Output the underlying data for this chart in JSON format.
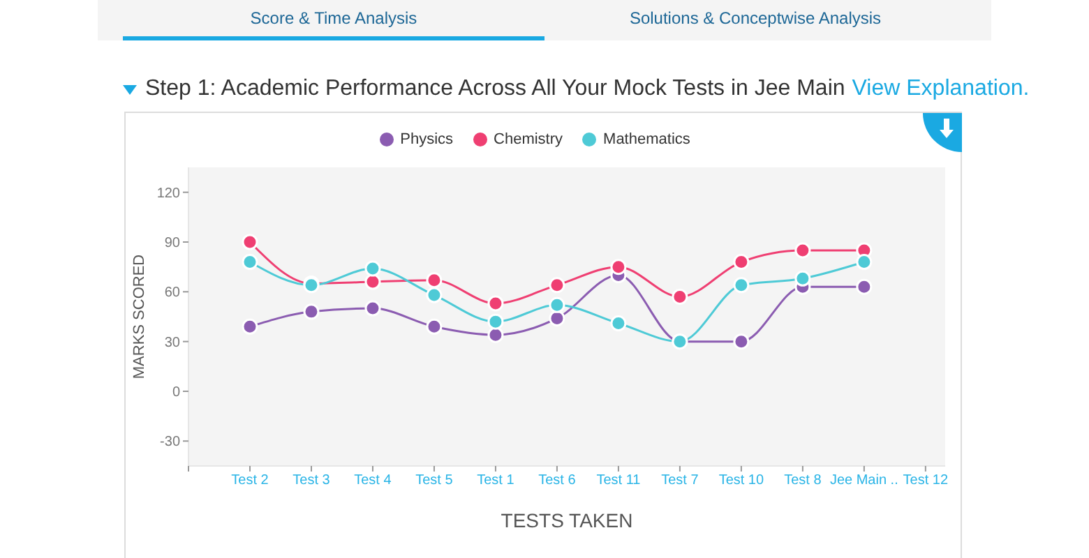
{
  "chart_data": {
    "type": "line",
    "title": "Step 1: Academic Performance Across All Your Mock Tests in Jee Main",
    "annotations": [
      "Score & Time Analysis",
      "Solutions & Conceptwise Analysis",
      "View Explanation."
    ],
    "xlabel": "TESTS TAKEN",
    "ylabel": "MARKS SCORED",
    "categories": [
      null,
      "Test 2",
      "Test 3",
      "Test 4",
      "Test 5",
      "Test 1",
      "Test 6",
      "Test 11",
      "Test 7",
      "Test 10",
      "Test 8",
      "Jee Main ..",
      "Test 12"
    ],
    "series": [
      {
        "name": "Physics",
        "color": "#8b5cb1",
        "values": [
          null,
          39,
          48,
          50,
          39,
          34,
          44,
          70,
          30,
          30,
          63,
          63,
          null
        ]
      },
      {
        "name": "Chemistry",
        "color": "#ef3f72",
        "values": [
          null,
          90,
          65,
          66,
          67,
          53,
          64,
          75,
          57,
          78,
          85,
          85,
          null
        ]
      },
      {
        "name": "Mathematics",
        "color": "#4ecad6",
        "values": [
          null,
          78,
          64,
          74,
          58,
          42,
          52,
          41,
          30,
          64,
          68,
          78,
          null
        ]
      }
    ],
    "ylim": [
      -45,
      135
    ],
    "yticks": [
      -30,
      0,
      30,
      60,
      90,
      120
    ],
    "legend": "top",
    "marker": "circle"
  }
}
